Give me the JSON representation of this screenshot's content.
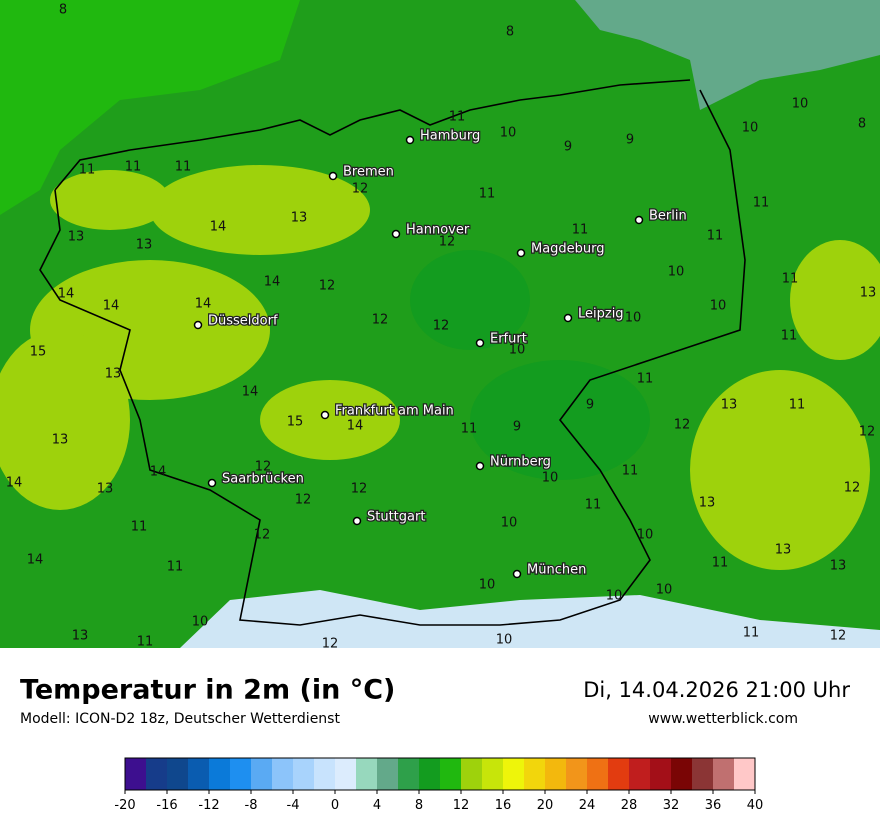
{
  "header": {
    "title": "Temperatur in 2m (in °C)",
    "subtitle": "Modell: ICON-D2 18z, Deutscher Wetterdienst",
    "datetime": "Di, 14.04.2026 21:00 Uhr",
    "source": "www.wetterblick.com"
  },
  "map": {
    "cities": [
      "Hamburg",
      "Bremen",
      "Hannover",
      "Berlin",
      "Magdeburg",
      "Düsseldorf",
      "Leipzig",
      "Erfurt",
      "Frankfurt am Main",
      "Saarbrücken",
      "Nürnberg",
      "Stuttgart",
      "München"
    ],
    "temperature_labels": [
      8,
      8,
      11,
      10,
      9,
      9,
      10,
      10,
      8,
      11,
      11,
      11,
      12,
      11,
      13,
      14,
      13,
      13,
      12,
      11,
      11,
      11,
      10,
      11,
      14,
      12,
      14,
      14,
      14,
      12,
      12,
      10,
      10,
      13,
      11,
      15,
      10,
      13,
      11,
      14,
      13,
      11,
      9,
      15,
      14,
      11,
      9,
      12,
      12,
      13,
      14,
      12,
      11,
      10,
      14,
      13,
      12,
      12,
      12,
      11,
      13,
      10,
      11,
      12,
      10,
      13,
      14,
      11,
      11,
      13,
      10,
      10,
      10,
      10,
      13,
      11,
      10,
      11,
      12,
      12
    ]
  },
  "legend": {
    "ticks": [
      -20,
      -16,
      -12,
      -8,
      -4,
      0,
      4,
      8,
      12,
      16,
      20,
      24,
      28,
      32,
      36,
      40
    ],
    "colors": [
      "#3d0f8f",
      "#163c8a",
      "#0f478d",
      "#0a5cb0",
      "#0b7ad9",
      "#1e8ff0",
      "#5aaaf3",
      "#8cc4fa",
      "#a8d3fc",
      "#c8e3fd",
      "#dcecfd",
      "#97d8bd",
      "#63a98a",
      "#2ea04a",
      "#139c1f",
      "#20b80f",
      "#9ed20c",
      "#c7e50a",
      "#eef50a",
      "#f2d60c",
      "#f3b80d",
      "#f2951a",
      "#ef7114",
      "#e23c10",
      "#c01e1e",
      "#a30f18",
      "#7a0505",
      "#8b3535",
      "#c07070",
      "#ffc8c8"
    ]
  }
}
